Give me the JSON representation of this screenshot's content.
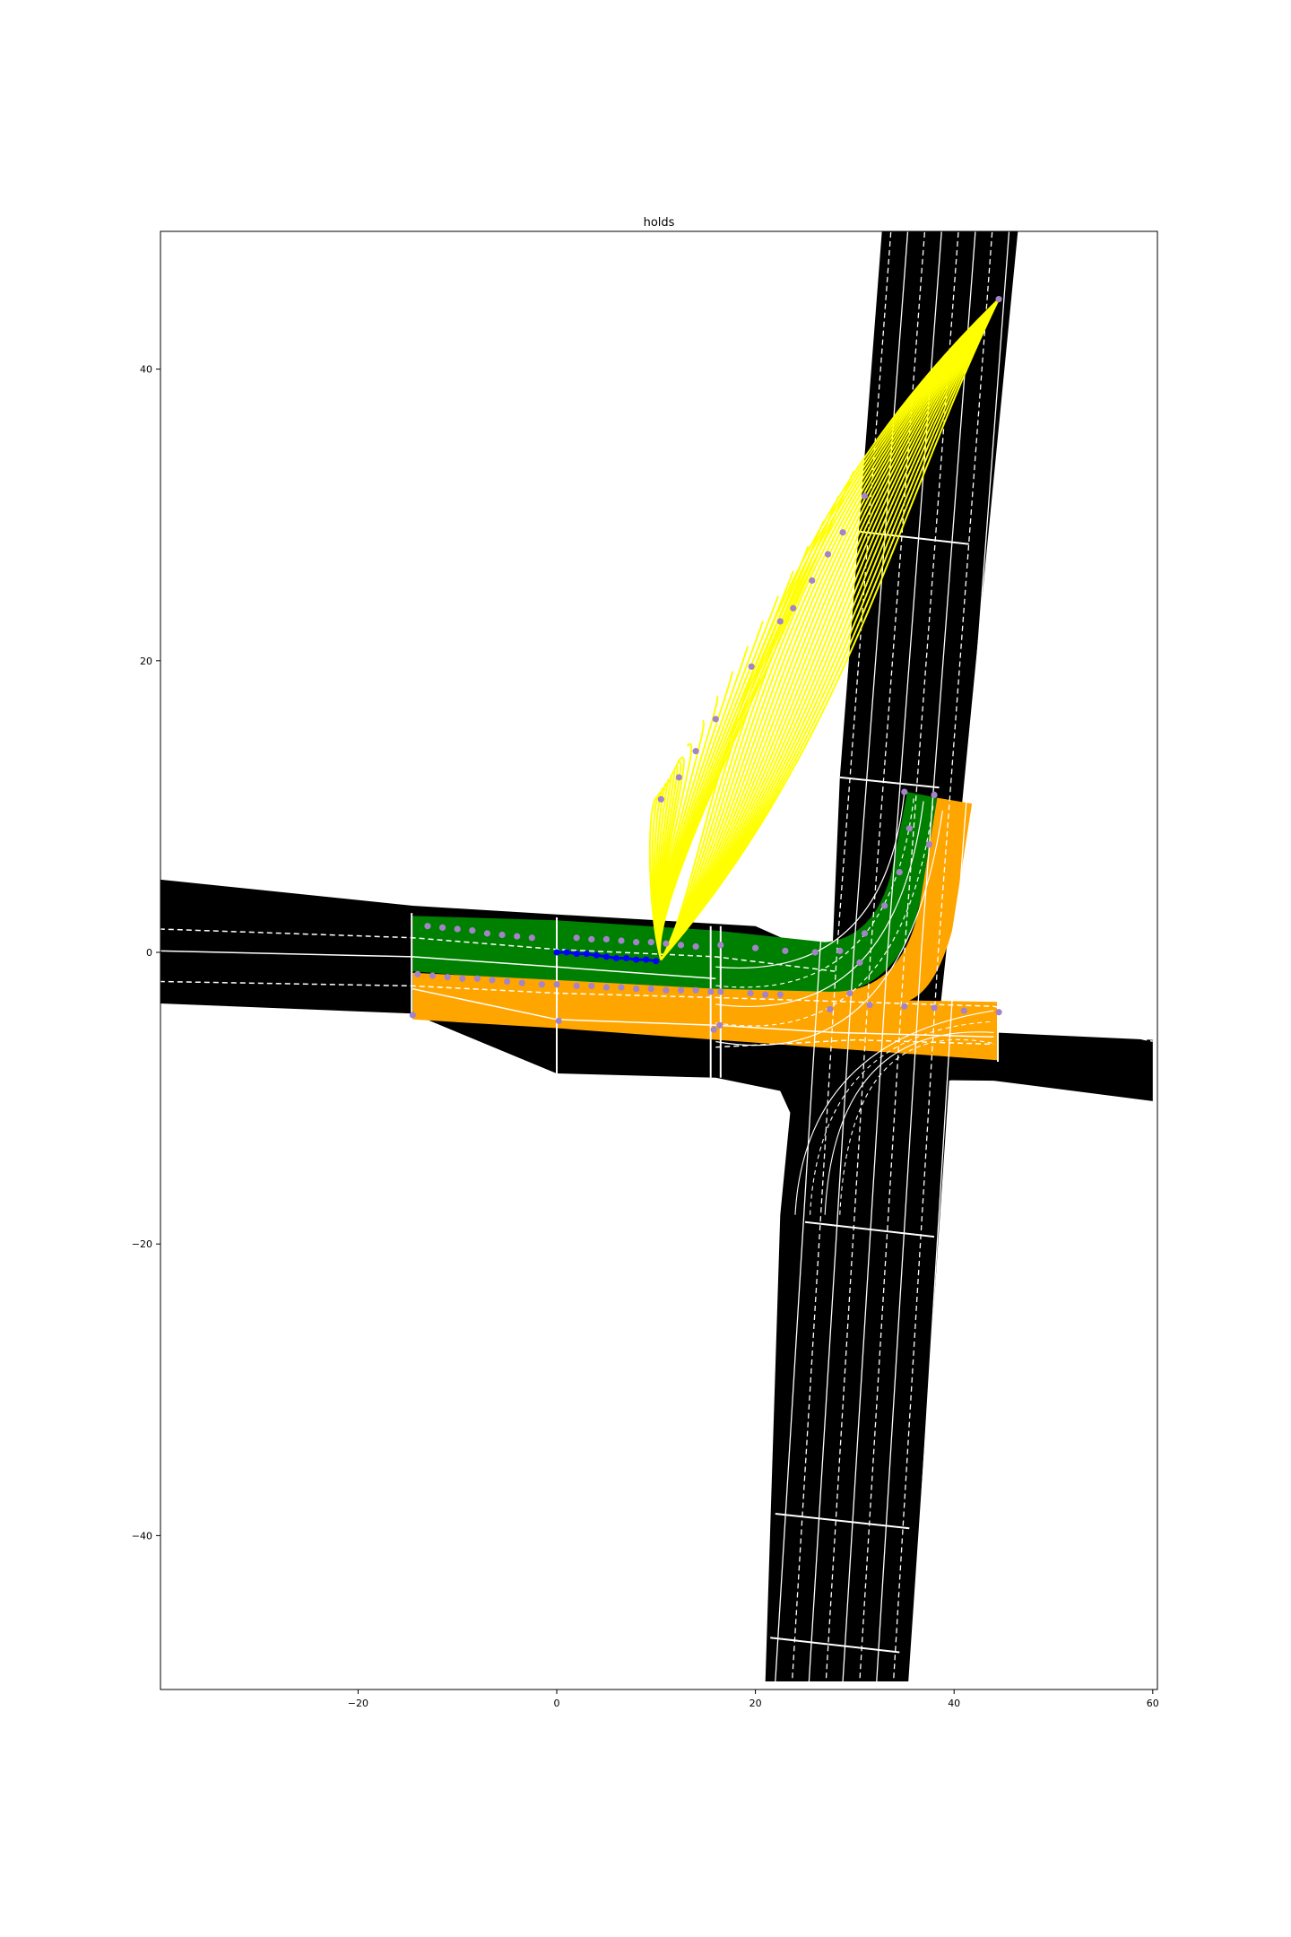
{
  "figure": {
    "title": "holds"
  },
  "axes": {
    "x": {
      "range": [
        -40,
        60
      ],
      "ticks": [
        {
          "value": -20,
          "label": "−20"
        },
        {
          "value": 0,
          "label": "0"
        },
        {
          "value": 20,
          "label": "20"
        },
        {
          "value": 40,
          "label": "40"
        },
        {
          "value": 60,
          "label": "60"
        }
      ]
    },
    "y": {
      "range": [
        -50,
        50
      ],
      "ticks": [
        {
          "value": 40,
          "label": "40"
        },
        {
          "value": 20,
          "label": "20"
        },
        {
          "value": 0,
          "label": "0"
        },
        {
          "value": -20,
          "label": "−20"
        },
        {
          "value": -40,
          "label": "−40"
        }
      ]
    },
    "grid": false,
    "aspect": "equal"
  },
  "colors": {
    "road": "#000000",
    "lane_markings": "#ffffff",
    "hold_region_primary": "#008000",
    "hold_region_secondary": "#ffa500",
    "candidate_trajectories": "#ffff00",
    "ego_history": "#0000ff",
    "sample_points": "#a384c9"
  },
  "map_content": {
    "roads": [
      {
        "name": "horizontal road",
        "orientation": "east-west"
      },
      {
        "name": "vertical road",
        "orientation": "north-south"
      }
    ],
    "highlighted_regions": [
      {
        "name": "hold path primary",
        "color": "green",
        "route": "eastbound then left turn north"
      },
      {
        "name": "hold path secondary",
        "color": "orange",
        "route": "eastbound through and left turn north"
      }
    ],
    "trajectories": {
      "color": "yellow",
      "count": 22,
      "origin": [
        10.5,
        -0.5
      ],
      "destination": [
        44.5,
        44.8
      ]
    },
    "ego_track": {
      "color": "blue",
      "points": [
        [
          0,
          0
        ],
        [
          1,
          0
        ],
        [
          2,
          -0.1
        ],
        [
          3,
          -0.1
        ],
        [
          4,
          -0.2
        ],
        [
          5,
          -0.3
        ],
        [
          6,
          -0.4
        ],
        [
          7,
          -0.4
        ],
        [
          8,
          -0.5
        ],
        [
          9,
          -0.5
        ],
        [
          10,
          -0.6
        ]
      ]
    },
    "sample_points": {
      "green_row_upper": [
        [
          -13,
          1.8
        ],
        [
          -11.5,
          1.7
        ],
        [
          -10,
          1.6
        ],
        [
          -8.5,
          1.5
        ],
        [
          -7,
          1.3
        ],
        [
          -5.5,
          1.2
        ],
        [
          -4,
          1.1
        ],
        [
          -2.5,
          1.0
        ],
        [
          2,
          1.0
        ],
        [
          3.5,
          0.9
        ],
        [
          5,
          0.9
        ],
        [
          6.5,
          0.8
        ],
        [
          8,
          0.7
        ],
        [
          9.5,
          0.7
        ],
        [
          11,
          0.6
        ],
        [
          12.5,
          0.5
        ],
        [
          14,
          0.4
        ],
        [
          16.5,
          0.5
        ],
        [
          20,
          0.3
        ],
        [
          23,
          0.1
        ],
        [
          26,
          0.0
        ],
        [
          28.5,
          0.1
        ]
      ],
      "orange_row_upper": [
        [
          -14,
          -1.5
        ],
        [
          -12.5,
          -1.6
        ],
        [
          -11,
          -1.7
        ],
        [
          -9.5,
          -1.8
        ],
        [
          -8,
          -1.8
        ],
        [
          -6.5,
          -1.9
        ],
        [
          -5,
          -2.0
        ],
        [
          -3.5,
          -2.1
        ],
        [
          -1.5,
          -2.2
        ],
        [
          0,
          -2.2
        ],
        [
          2,
          -2.3
        ],
        [
          3.5,
          -2.3
        ],
        [
          5,
          -2.4
        ],
        [
          6.5,
          -2.4
        ],
        [
          8,
          -2.5
        ],
        [
          9.5,
          -2.5
        ],
        [
          11,
          -2.6
        ],
        [
          12.5,
          -2.6
        ],
        [
          14,
          -2.6
        ],
        [
          15.5,
          -2.7
        ],
        [
          16.5,
          -2.7
        ],
        [
          19.5,
          -2.8
        ],
        [
          21,
          -2.9
        ],
        [
          22.5,
          -2.9
        ]
      ],
      "bottom_misc": [
        [
          -14.5,
          -4.3
        ],
        [
          0.2,
          -4.7
        ],
        [
          15.8,
          -5.3
        ],
        [
          16.4,
          -5.0
        ],
        [
          27.5,
          -3.9
        ],
        [
          31.5,
          -3.6
        ],
        [
          35,
          -3.7
        ],
        [
          38,
          -3.8
        ],
        [
          41,
          -4.0
        ],
        [
          44.5,
          -4.1
        ]
      ],
      "turn_points": [
        [
          35,
          11
        ],
        [
          38,
          10.8
        ],
        [
          35.5,
          8.5
        ],
        [
          37.5,
          7.4
        ],
        [
          34.5,
          5.5
        ],
        [
          33,
          3.2
        ],
        [
          31,
          1.3
        ],
        [
          30.5,
          -0.7
        ],
        [
          29.5,
          -2.8
        ]
      ],
      "trajectory_endpoints": [
        [
          10.5,
          10.5
        ],
        [
          12.3,
          12.0
        ],
        [
          14,
          13.8
        ],
        [
          16,
          16
        ],
        [
          19.6,
          19.6
        ],
        [
          22.5,
          22.7
        ],
        [
          23.8,
          23.6
        ],
        [
          25.7,
          25.5
        ],
        [
          27.3,
          27.3
        ],
        [
          28.8,
          28.8
        ],
        [
          31,
          31.3
        ],
        [
          44.5,
          44.8
        ]
      ]
    }
  }
}
